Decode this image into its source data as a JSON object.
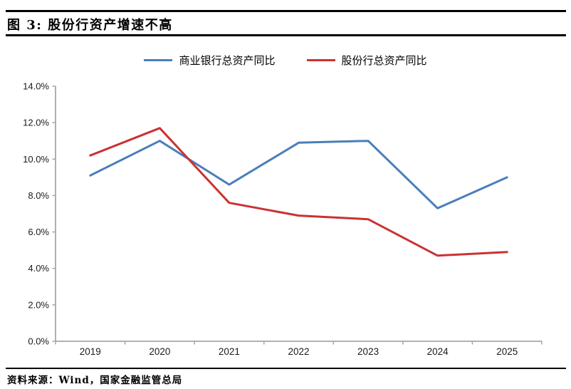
{
  "figure": {
    "title": "图 3:  股份行资产增速不高"
  },
  "legend": [
    {
      "key": "commercial-banks",
      "label": "商业银行总资产同比",
      "color": "#4a7ebb"
    },
    {
      "key": "joint-stock-banks",
      "label": "股份行总资产同比",
      "color": "#cb3232"
    }
  ],
  "chart_data": {
    "type": "line",
    "title": "股份行资产增速不高",
    "xlabel": "",
    "ylabel": "",
    "categories": [
      "2019",
      "2020",
      "2021",
      "2022",
      "2023",
      "2024",
      "2025"
    ],
    "series": [
      {
        "key": "commercial-banks",
        "name": "商业银行总资产同比",
        "color": "#4a7ebb",
        "values": [
          9.1,
          11.0,
          8.6,
          10.9,
          11.0,
          7.3,
          9.0
        ]
      },
      {
        "key": "joint-stock-banks",
        "name": "股份行总资产同比",
        "color": "#cb3232",
        "values": [
          10.2,
          11.7,
          7.6,
          6.9,
          6.7,
          4.7,
          4.9
        ]
      }
    ],
    "ylim": [
      0,
      14
    ],
    "ytick_values": [
      0,
      2,
      4,
      6,
      8,
      10,
      12,
      14
    ],
    "ytick_labels": [
      "0.0%",
      "2.0%",
      "4.0%",
      "6.0%",
      "8.0%",
      "10.0%",
      "12.0%",
      "14.0%"
    ],
    "grid": "off",
    "legend_position": "top",
    "axis_color": "#a6a6a6",
    "tick_label_color": "#1a1a1a"
  },
  "footer": {
    "source_label": "资料来源：Wind，国家金融监管总局"
  }
}
